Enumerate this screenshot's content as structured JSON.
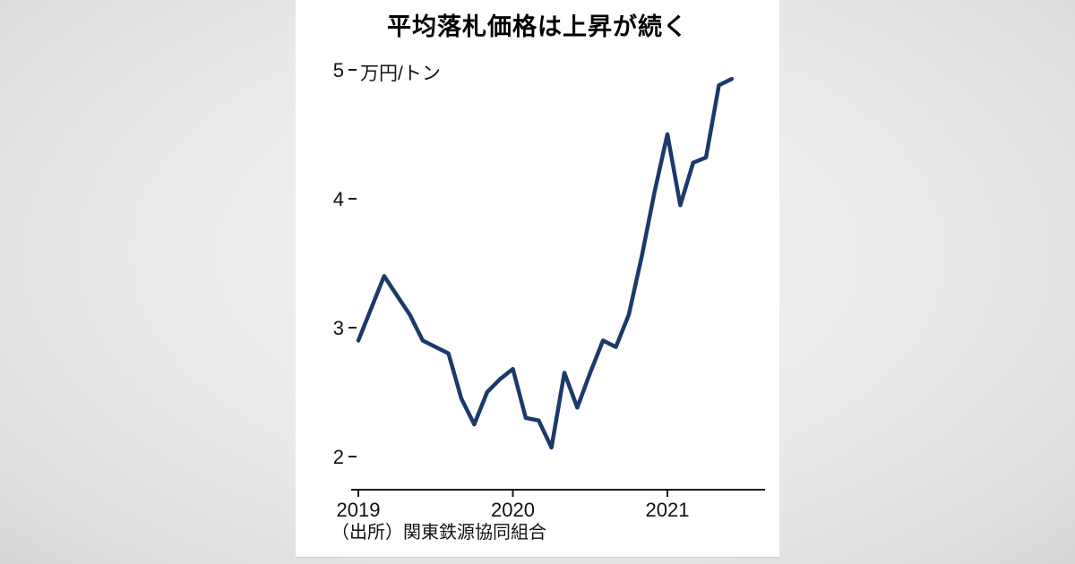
{
  "chart": {
    "title": "平均落札価格は上昇が続く",
    "unit_label": "万円/トン",
    "source_note": "（出所）関東鉄源協同組合",
    "line_color": "#1b3a6a",
    "axis_color": "#1a1a1a",
    "text_color": "#111111",
    "panel_color": "#ffffff",
    "background_color": "#e9e9e9"
  },
  "chart_data": {
    "type": "line",
    "title": "平均落札価格は上昇が続く",
    "ylabel": "万円/トン",
    "source": "（出所）関東鉄源協同組合",
    "grid": false,
    "legend": false,
    "x": [
      "2019-01",
      "2019-02",
      "2019-03",
      "2019-04",
      "2019-05",
      "2019-06",
      "2019-07",
      "2019-08",
      "2019-09",
      "2019-10",
      "2019-11",
      "2019-12",
      "2020-01",
      "2020-02",
      "2020-03",
      "2020-04",
      "2020-05",
      "2020-06",
      "2020-07",
      "2020-08",
      "2020-09",
      "2020-10",
      "2020-11",
      "2020-12",
      "2021-01",
      "2021-02",
      "2021-03",
      "2021-04",
      "2021-05",
      "2021-06"
    ],
    "series": [
      {
        "name": "平均落札価格",
        "values": [
          2.9,
          3.15,
          3.4,
          3.25,
          3.1,
          2.9,
          2.85,
          2.8,
          2.45,
          2.25,
          2.5,
          2.6,
          2.68,
          2.3,
          2.28,
          2.07,
          2.65,
          2.38,
          2.65,
          2.9,
          2.85,
          3.1,
          3.55,
          4.05,
          4.5,
          3.95,
          4.28,
          4.32,
          4.88,
          4.93
        ]
      }
    ],
    "x_tick_labels": [
      "2019",
      "2020",
      "2021"
    ],
    "x_tick_positions": [
      0,
      12,
      24
    ],
    "y_ticks": [
      2,
      3,
      4,
      5
    ],
    "ylim": [
      1.74,
      5.2
    ]
  }
}
